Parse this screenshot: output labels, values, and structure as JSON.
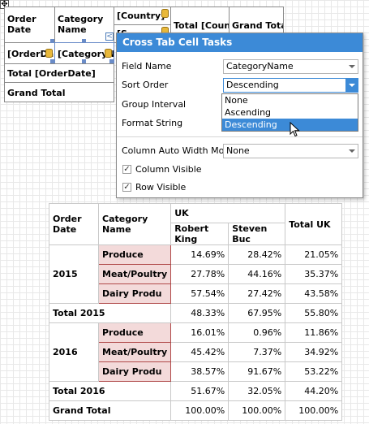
{
  "designer": {
    "order_date_header": "Order Date",
    "category_name_header": "Category Name",
    "country_field": "[Country]",
    "total_count_header": "Total [Count",
    "grand_total_header": "Grand Total",
    "order_date_field": "[OrderDa",
    "category_field": "[CategoryNa",
    "total_order_date": "Total [OrderDate]",
    "grand_total_row": "Grand Total",
    "partial_field": "[S...",
    "smart_tag": "<"
  },
  "popup": {
    "title": "Cross Tab Cell Tasks",
    "field_name_label": "Field Name",
    "field_name_value": "CategoryName",
    "sort_order_label": "Sort Order",
    "sort_order_value": "Descending",
    "group_interval_label": "Group Interval",
    "format_string_label": "Format String",
    "sort_options": [
      "None",
      "Ascending",
      "Descending"
    ],
    "sort_selected": "Descending",
    "column_auto_width_label": "Column Auto Width Mode",
    "column_auto_width_value": "None",
    "column_visible_label": "Column Visible",
    "column_visible_checked": true,
    "row_visible_label": "Row Visible",
    "row_visible_checked": true,
    "accent_color": "#3c8ad7"
  },
  "preview": {
    "headers": {
      "order_date": "Order Date",
      "category_name": "Category Name",
      "country": "UK",
      "person1": "Robert King",
      "person2": "Steven Buc",
      "total_uk": "Total UK"
    },
    "groups": [
      {
        "year": "2015",
        "rows": [
          {
            "category": "Produce",
            "v1": "14.69%",
            "v2": "28.42%",
            "total": "21.05%"
          },
          {
            "category": "Meat/Poultry",
            "v1": "27.78%",
            "v2": "44.16%",
            "total": "35.37%"
          },
          {
            "category": "Dairy Produ",
            "v1": "57.54%",
            "v2": "27.42%",
            "total": "43.58%"
          }
        ],
        "total_label": "Total 2015",
        "total": {
          "v1": "48.33%",
          "v2": "67.95%",
          "total": "55.80%"
        }
      },
      {
        "year": "2016",
        "rows": [
          {
            "category": "Produce",
            "v1": "16.01%",
            "v2": "0.96%",
            "total": "11.86%"
          },
          {
            "category": "Meat/Poultry",
            "v1": "45.42%",
            "v2": "7.37%",
            "total": "34.92%"
          },
          {
            "category": "Dairy Produ",
            "v1": "38.57%",
            "v2": "91.67%",
            "total": "53.22%"
          }
        ],
        "total_label": "Total 2016",
        "total": {
          "v1": "51.67%",
          "v2": "32.05%",
          "total": "44.20%"
        }
      }
    ],
    "grand_total": {
      "label": "Grand Total",
      "v1": "100.00%",
      "v2": "100.00%",
      "total": "100.00%"
    }
  }
}
